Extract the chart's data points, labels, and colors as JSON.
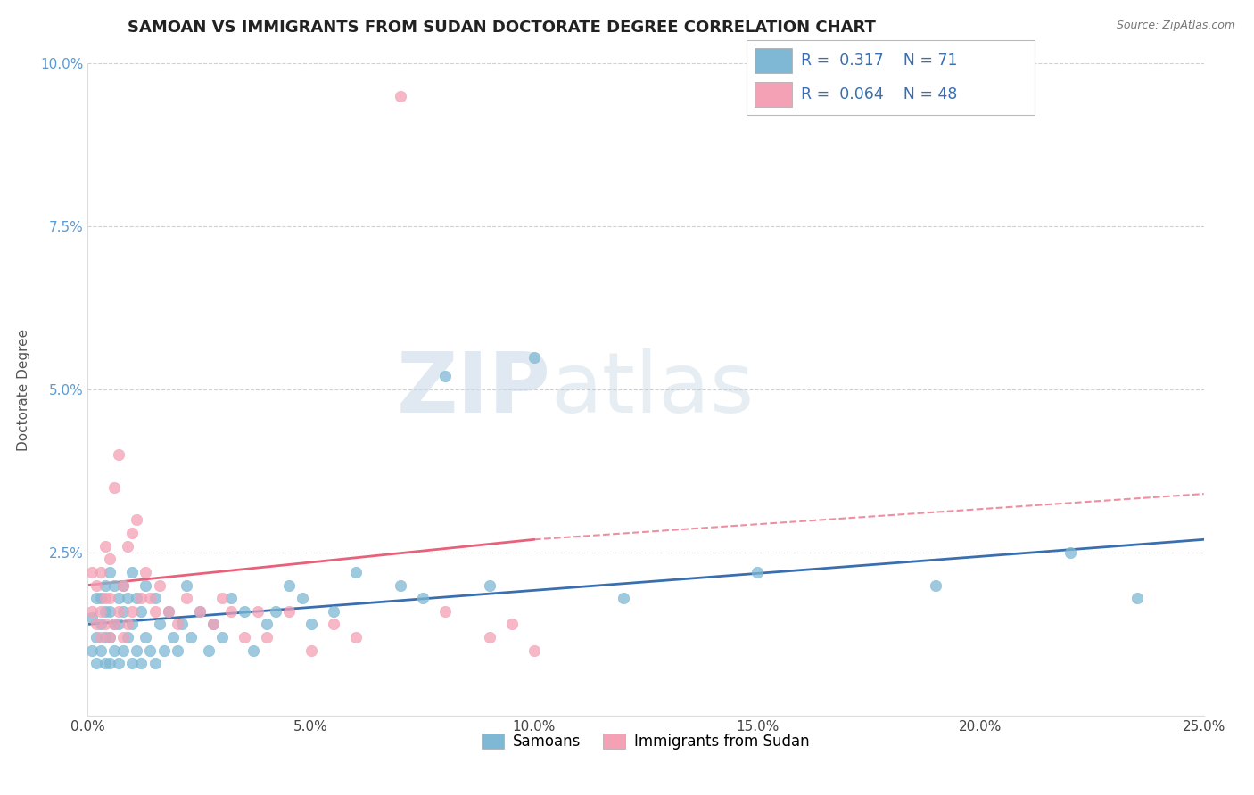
{
  "title": "SAMOAN VS IMMIGRANTS FROM SUDAN DOCTORATE DEGREE CORRELATION CHART",
  "source": "Source: ZipAtlas.com",
  "ylabel": "Doctorate Degree",
  "xlim": [
    0.0,
    0.25
  ],
  "ylim": [
    0.0,
    0.1
  ],
  "xticks": [
    0.0,
    0.05,
    0.1,
    0.15,
    0.2,
    0.25
  ],
  "xticklabels": [
    "0.0%",
    "5.0%",
    "10.0%",
    "15.0%",
    "20.0%",
    "25.0%"
  ],
  "yticks": [
    0.0,
    0.025,
    0.05,
    0.075,
    0.1
  ],
  "yticklabels": [
    "",
    "2.5%",
    "5.0%",
    "7.5%",
    "10.0%"
  ],
  "blue_color": "#7eb8d4",
  "pink_color": "#f4a0b5",
  "blue_line_color": "#3a6faf",
  "pink_line_color": "#e8607a",
  "legend_R1": "R =  0.317",
  "legend_N1": "N = 71",
  "legend_R2": "R =  0.064",
  "legend_N2": "N = 48",
  "watermark_zip": "ZIP",
  "watermark_atlas": "atlas",
  "blue_scatter_x": [
    0.001,
    0.001,
    0.002,
    0.002,
    0.002,
    0.003,
    0.003,
    0.003,
    0.004,
    0.004,
    0.004,
    0.004,
    0.005,
    0.005,
    0.005,
    0.005,
    0.006,
    0.006,
    0.006,
    0.007,
    0.007,
    0.007,
    0.008,
    0.008,
    0.008,
    0.009,
    0.009,
    0.01,
    0.01,
    0.01,
    0.011,
    0.011,
    0.012,
    0.012,
    0.013,
    0.013,
    0.014,
    0.015,
    0.015,
    0.016,
    0.017,
    0.018,
    0.019,
    0.02,
    0.021,
    0.022,
    0.023,
    0.025,
    0.027,
    0.028,
    0.03,
    0.032,
    0.035,
    0.037,
    0.04,
    0.042,
    0.045,
    0.048,
    0.05,
    0.055,
    0.06,
    0.07,
    0.075,
    0.08,
    0.09,
    0.1,
    0.12,
    0.15,
    0.19,
    0.22,
    0.235
  ],
  "blue_scatter_y": [
    0.01,
    0.015,
    0.008,
    0.012,
    0.018,
    0.01,
    0.014,
    0.018,
    0.008,
    0.012,
    0.016,
    0.02,
    0.008,
    0.012,
    0.016,
    0.022,
    0.01,
    0.014,
    0.02,
    0.008,
    0.014,
    0.018,
    0.01,
    0.016,
    0.02,
    0.012,
    0.018,
    0.008,
    0.014,
    0.022,
    0.01,
    0.018,
    0.008,
    0.016,
    0.012,
    0.02,
    0.01,
    0.008,
    0.018,
    0.014,
    0.01,
    0.016,
    0.012,
    0.01,
    0.014,
    0.02,
    0.012,
    0.016,
    0.01,
    0.014,
    0.012,
    0.018,
    0.016,
    0.01,
    0.014,
    0.016,
    0.02,
    0.018,
    0.014,
    0.016,
    0.022,
    0.02,
    0.018,
    0.052,
    0.02,
    0.055,
    0.018,
    0.022,
    0.02,
    0.025,
    0.018
  ],
  "pink_scatter_x": [
    0.001,
    0.001,
    0.002,
    0.002,
    0.003,
    0.003,
    0.003,
    0.004,
    0.004,
    0.004,
    0.005,
    0.005,
    0.005,
    0.006,
    0.006,
    0.007,
    0.007,
    0.008,
    0.008,
    0.009,
    0.009,
    0.01,
    0.01,
    0.011,
    0.012,
    0.013,
    0.014,
    0.015,
    0.016,
    0.018,
    0.02,
    0.022,
    0.025,
    0.028,
    0.03,
    0.032,
    0.035,
    0.038,
    0.04,
    0.045,
    0.05,
    0.055,
    0.06,
    0.07,
    0.08,
    0.09,
    0.095,
    0.1
  ],
  "pink_scatter_y": [
    0.016,
    0.022,
    0.014,
    0.02,
    0.012,
    0.016,
    0.022,
    0.014,
    0.018,
    0.026,
    0.012,
    0.018,
    0.024,
    0.014,
    0.035,
    0.016,
    0.04,
    0.012,
    0.02,
    0.014,
    0.026,
    0.016,
    0.028,
    0.03,
    0.018,
    0.022,
    0.018,
    0.016,
    0.02,
    0.016,
    0.014,
    0.018,
    0.016,
    0.014,
    0.018,
    0.016,
    0.012,
    0.016,
    0.012,
    0.016,
    0.01,
    0.014,
    0.012,
    0.095,
    0.016,
    0.012,
    0.014,
    0.01
  ],
  "blue_line_x0": 0.0,
  "blue_line_y0": 0.014,
  "blue_line_x1": 0.25,
  "blue_line_y1": 0.027,
  "pink_line_x0": 0.0,
  "pink_line_y0": 0.02,
  "pink_line_x1": 0.1,
  "pink_line_y1": 0.027,
  "pink_line_dash_x0": 0.1,
  "pink_line_dash_y0": 0.027,
  "pink_line_dash_x1": 0.25,
  "pink_line_dash_y1": 0.034,
  "title_fontsize": 13,
  "axis_fontsize": 11,
  "tick_fontsize": 11,
  "background_color": "#ffffff",
  "grid_color": "#cccccc"
}
